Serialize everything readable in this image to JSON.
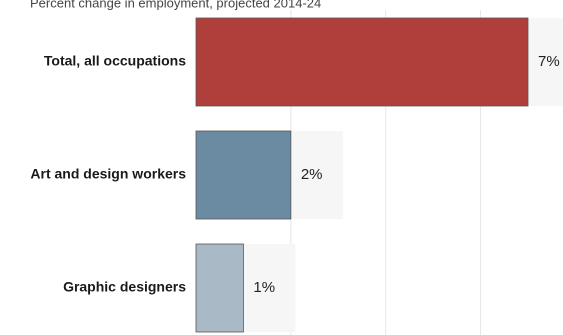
{
  "chart_data": {
    "type": "bar",
    "orientation": "horizontal",
    "title": "Percent change in employment, projected 2014-24",
    "categories": [
      "Total, all occupations",
      "Art and design workers",
      "Graphic designers"
    ],
    "values": [
      7,
      2,
      1
    ],
    "value_labels": [
      "7%",
      "2%",
      "1%"
    ],
    "colors": [
      "#b03f3b",
      "#6b8ba3",
      "#a9bac6"
    ],
    "xlim": [
      0,
      7
    ],
    "grid": true
  }
}
